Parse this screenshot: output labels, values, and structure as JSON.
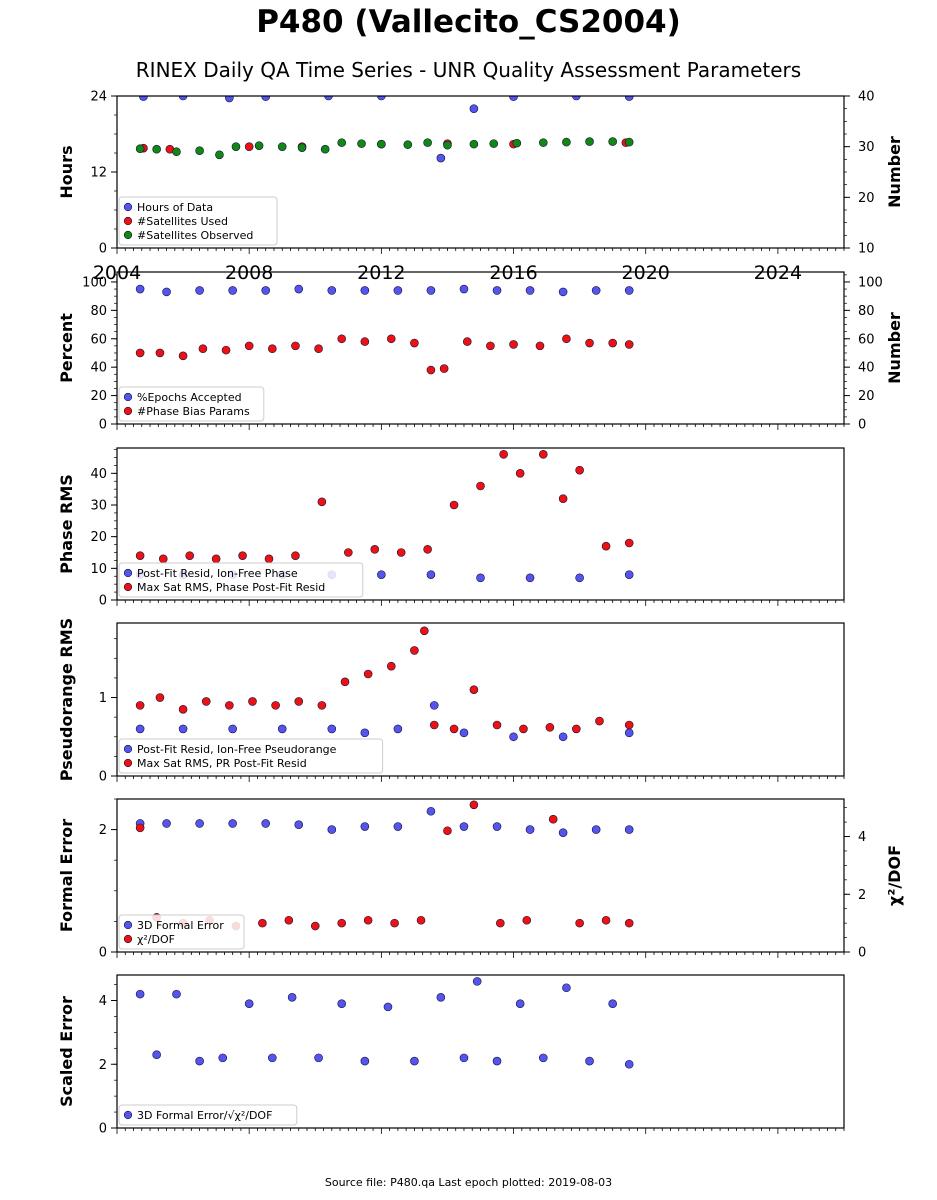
{
  "title": "P480 (Vallecito_CS2004)",
  "subtitle": "RINEX Daily QA Time Series - UNR Quality Assessment Parameters",
  "footer": "Source file: P480.qa Last epoch plotted: 2019-08-03",
  "colors": {
    "blue": "#5555ee",
    "red": "#ee1111",
    "green": "#118811",
    "navy": "#111144"
  },
  "chart_data": [
    {
      "type": "scatter",
      "ylabel": "Hours",
      "y2label": "Number",
      "xlim": [
        2004,
        2026
      ],
      "ylim": [
        0,
        24
      ],
      "y2lim": [
        10,
        40
      ],
      "yticks": [
        0,
        12,
        24
      ],
      "y2ticks": [
        10,
        20,
        30,
        40
      ],
      "xtick_labels": [
        "2004",
        "2008",
        "2012",
        "2016",
        "2020",
        "2024"
      ],
      "legend_location": "lower-left",
      "series": [
        {
          "name": "Hours of Data",
          "color": "blue",
          "axis": "left",
          "x": [
            2004.8,
            2006.0,
            2007.4,
            2008.5,
            2010.4,
            2012.0,
            2013.8,
            2014.8,
            2016.0,
            2017.9,
            2019.5
          ],
          "y": [
            23.9,
            24.0,
            23.7,
            23.9,
            24.0,
            24.0,
            14.2,
            22.0,
            23.9,
            24.0,
            23.9
          ]
        },
        {
          "name": "#Satellites Used",
          "color": "red",
          "axis": "right",
          "x": [
            2004.8,
            2005.6,
            2008.0,
            2009.6,
            2012.0,
            2014.0,
            2016.0,
            2019.4
          ],
          "y": [
            29.7,
            29.5,
            30.0,
            30.0,
            30.5,
            30.6,
            30.5,
            30.8
          ]
        },
        {
          "name": "#Satellites Observed",
          "color": "green",
          "axis": "right",
          "x": [
            2004.7,
            2005.2,
            2005.8,
            2006.5,
            2007.1,
            2007.6,
            2008.3,
            2009.0,
            2009.6,
            2010.3,
            2010.8,
            2011.4,
            2012.0,
            2012.8,
            2013.4,
            2014.0,
            2014.8,
            2015.4,
            2016.1,
            2016.9,
            2017.6,
            2018.3,
            2019.0,
            2019.5
          ],
          "y": [
            29.6,
            29.5,
            29.0,
            29.2,
            28.4,
            30.0,
            30.2,
            30.0,
            29.8,
            29.5,
            30.8,
            30.6,
            30.5,
            30.4,
            30.8,
            30.3,
            30.5,
            30.6,
            30.7,
            30.8,
            30.9,
            31.0,
            31.0,
            30.9
          ]
        }
      ]
    },
    {
      "type": "scatter",
      "ylabel": "Percent",
      "y2label": "Number",
      "xlim": [
        2004,
        2026
      ],
      "ylim": [
        0,
        107
      ],
      "y2lim": [
        0,
        107
      ],
      "yticks": [
        0,
        20,
        40,
        60,
        80,
        100
      ],
      "y2ticks": [
        0,
        20,
        40,
        60,
        80,
        100
      ],
      "legend_location": "lower-left",
      "series": [
        {
          "name": "%Epochs Accepted",
          "color": "blue",
          "axis": "left",
          "x": [
            2004.7,
            2005.5,
            2006.5,
            2007.5,
            2008.5,
            2009.5,
            2010.5,
            2011.5,
            2012.5,
            2013.5,
            2014.5,
            2015.5,
            2016.5,
            2017.5,
            2018.5,
            2019.5
          ],
          "y": [
            95,
            93,
            94,
            94,
            94,
            95,
            94,
            94,
            94,
            94,
            95,
            94,
            94,
            93,
            94,
            94
          ]
        },
        {
          "name": "#Phase Bias Params",
          "color": "red",
          "axis": "right",
          "x": [
            2004.7,
            2005.3,
            2006.0,
            2006.6,
            2007.3,
            2008.0,
            2008.7,
            2009.4,
            2010.1,
            2010.8,
            2011.5,
            2012.3,
            2013.0,
            2013.5,
            2013.9,
            2014.6,
            2015.3,
            2016.0,
            2016.8,
            2017.6,
            2018.3,
            2019.0,
            2019.5
          ],
          "y": [
            50,
            50,
            48,
            53,
            52,
            55,
            53,
            55,
            53,
            60,
            58,
            60,
            57,
            38,
            39,
            58,
            55,
            56,
            55,
            60,
            57,
            57,
            56
          ]
        }
      ]
    },
    {
      "type": "scatter",
      "ylabel": "Phase RMS",
      "xlim": [
        2004,
        2026
      ],
      "ylim": [
        0,
        48
      ],
      "yticks": [
        0,
        10,
        20,
        30,
        40
      ],
      "legend_location": "lower-left",
      "series": [
        {
          "name": "Post-Fit Resid, Ion-Free Phase",
          "color": "blue",
          "x": [
            2004.7,
            2006.0,
            2007.5,
            2009.0,
            2010.5,
            2012.0,
            2013.5,
            2015.0,
            2016.5,
            2018.0,
            2019.5
          ],
          "y": [
            8,
            8,
            8,
            8,
            8,
            8,
            8,
            7,
            7,
            7,
            8
          ]
        },
        {
          "name": "Max Sat RMS, Phase Post-Fit Resid",
          "color": "red",
          "x": [
            2004.7,
            2005.4,
            2006.2,
            2007.0,
            2007.8,
            2008.6,
            2009.4,
            2010.2,
            2011.0,
            2011.8,
            2012.6,
            2013.4,
            2014.2,
            2015.0,
            2015.7,
            2016.2,
            2016.9,
            2017.5,
            2018.0,
            2018.8,
            2019.5
          ],
          "y": [
            14,
            13,
            14,
            13,
            14,
            13,
            14,
            31,
            15,
            16,
            15,
            16,
            30,
            36,
            46,
            40,
            46,
            32,
            41,
            17,
            18
          ]
        }
      ]
    },
    {
      "type": "scatter",
      "ylabel": "Pseudorange RMS",
      "xlim": [
        2004,
        2026
      ],
      "ylim": [
        0,
        1.95
      ],
      "yticks": [
        0,
        1
      ],
      "legend_location": "lower-left",
      "series": [
        {
          "name": "Post-Fit Resid, Ion-Free Pseudorange",
          "color": "blue",
          "x": [
            2004.7,
            2006.0,
            2007.5,
            2009.0,
            2010.5,
            2011.5,
            2012.5,
            2013.6,
            2014.5,
            2016.0,
            2017.5,
            2019.5
          ],
          "y": [
            0.6,
            0.6,
            0.6,
            0.6,
            0.6,
            0.55,
            0.6,
            0.9,
            0.55,
            0.5,
            0.5,
            0.55
          ]
        },
        {
          "name": "Max Sat RMS, PR Post-Fit Resid",
          "color": "red",
          "x": [
            2004.7,
            2005.3,
            2006.0,
            2006.7,
            2007.4,
            2008.1,
            2008.8,
            2009.5,
            2010.2,
            2010.9,
            2011.6,
            2012.3,
            2013.0,
            2013.3,
            2013.6,
            2014.2,
            2014.8,
            2015.5,
            2016.3,
            2017.1,
            2017.9,
            2018.6,
            2019.5
          ],
          "y": [
            0.9,
            1.0,
            0.85,
            0.95,
            0.9,
            0.95,
            0.9,
            0.95,
            0.9,
            1.2,
            1.3,
            1.4,
            1.6,
            1.85,
            0.65,
            0.6,
            1.1,
            0.65,
            0.6,
            0.62,
            0.6,
            0.7,
            0.65
          ]
        }
      ]
    },
    {
      "type": "scatter",
      "ylabel": "Formal Error",
      "y2label": "χ²/DOF",
      "xlim": [
        2004,
        2026
      ],
      "ylim": [
        0,
        2.5
      ],
      "y2lim": [
        0,
        5.3
      ],
      "yticks": [
        0,
        2
      ],
      "y2ticks": [
        0,
        2,
        4
      ],
      "legend_location": "lower-left",
      "series": [
        {
          "name": "3D Formal Error",
          "color": "blue",
          "axis": "left",
          "x": [
            2004.7,
            2005.5,
            2006.5,
            2007.5,
            2008.5,
            2009.5,
            2010.5,
            2011.5,
            2012.5,
            2013.5,
            2014.5,
            2015.5,
            2016.5,
            2017.5,
            2018.5,
            2019.5
          ],
          "y": [
            2.1,
            2.1,
            2.1,
            2.1,
            2.1,
            2.08,
            2.0,
            2.05,
            2.05,
            2.3,
            2.05,
            2.05,
            2.0,
            1.95,
            2.0,
            2.0
          ]
        },
        {
          "name": "χ²/DOF",
          "color": "red",
          "axis": "right",
          "x": [
            2004.7,
            2005.2,
            2006.0,
            2006.8,
            2007.6,
            2008.4,
            2009.2,
            2010.0,
            2010.8,
            2011.6,
            2012.4,
            2013.2,
            2014.0,
            2014.8,
            2015.6,
            2016.4,
            2017.2,
            2018.0,
            2018.8,
            2019.5
          ],
          "y": [
            4.3,
            1.2,
            1.0,
            1.1,
            0.9,
            1.0,
            1.1,
            0.9,
            1.0,
            1.1,
            1.0,
            1.1,
            4.2,
            5.1,
            1.0,
            1.1,
            4.6,
            1.0,
            1.1,
            1.0
          ]
        }
      ]
    },
    {
      "type": "scatter",
      "ylabel": "Scaled Error",
      "xlim": [
        2004,
        2026
      ],
      "ylim": [
        0,
        4.8
      ],
      "yticks": [
        0,
        2,
        4
      ],
      "legend_location": "lower-left",
      "series": [
        {
          "name": "3D Formal Error/√χ²/DOF",
          "color": "blue",
          "x": [
            2004.7,
            2005.2,
            2005.8,
            2006.5,
            2007.2,
            2008.0,
            2008.7,
            2009.3,
            2010.1,
            2010.8,
            2011.5,
            2012.2,
            2013.0,
            2013.8,
            2014.5,
            2014.9,
            2015.5,
            2016.2,
            2016.9,
            2017.6,
            2018.3,
            2019.0,
            2019.5
          ],
          "y": [
            4.2,
            2.3,
            4.2,
            2.1,
            2.2,
            3.9,
            2.2,
            4.1,
            2.2,
            3.9,
            2.1,
            3.8,
            2.1,
            4.1,
            2.2,
            4.6,
            2.1,
            3.9,
            2.2,
            4.4,
            2.1,
            3.9,
            2.0
          ]
        }
      ]
    }
  ]
}
